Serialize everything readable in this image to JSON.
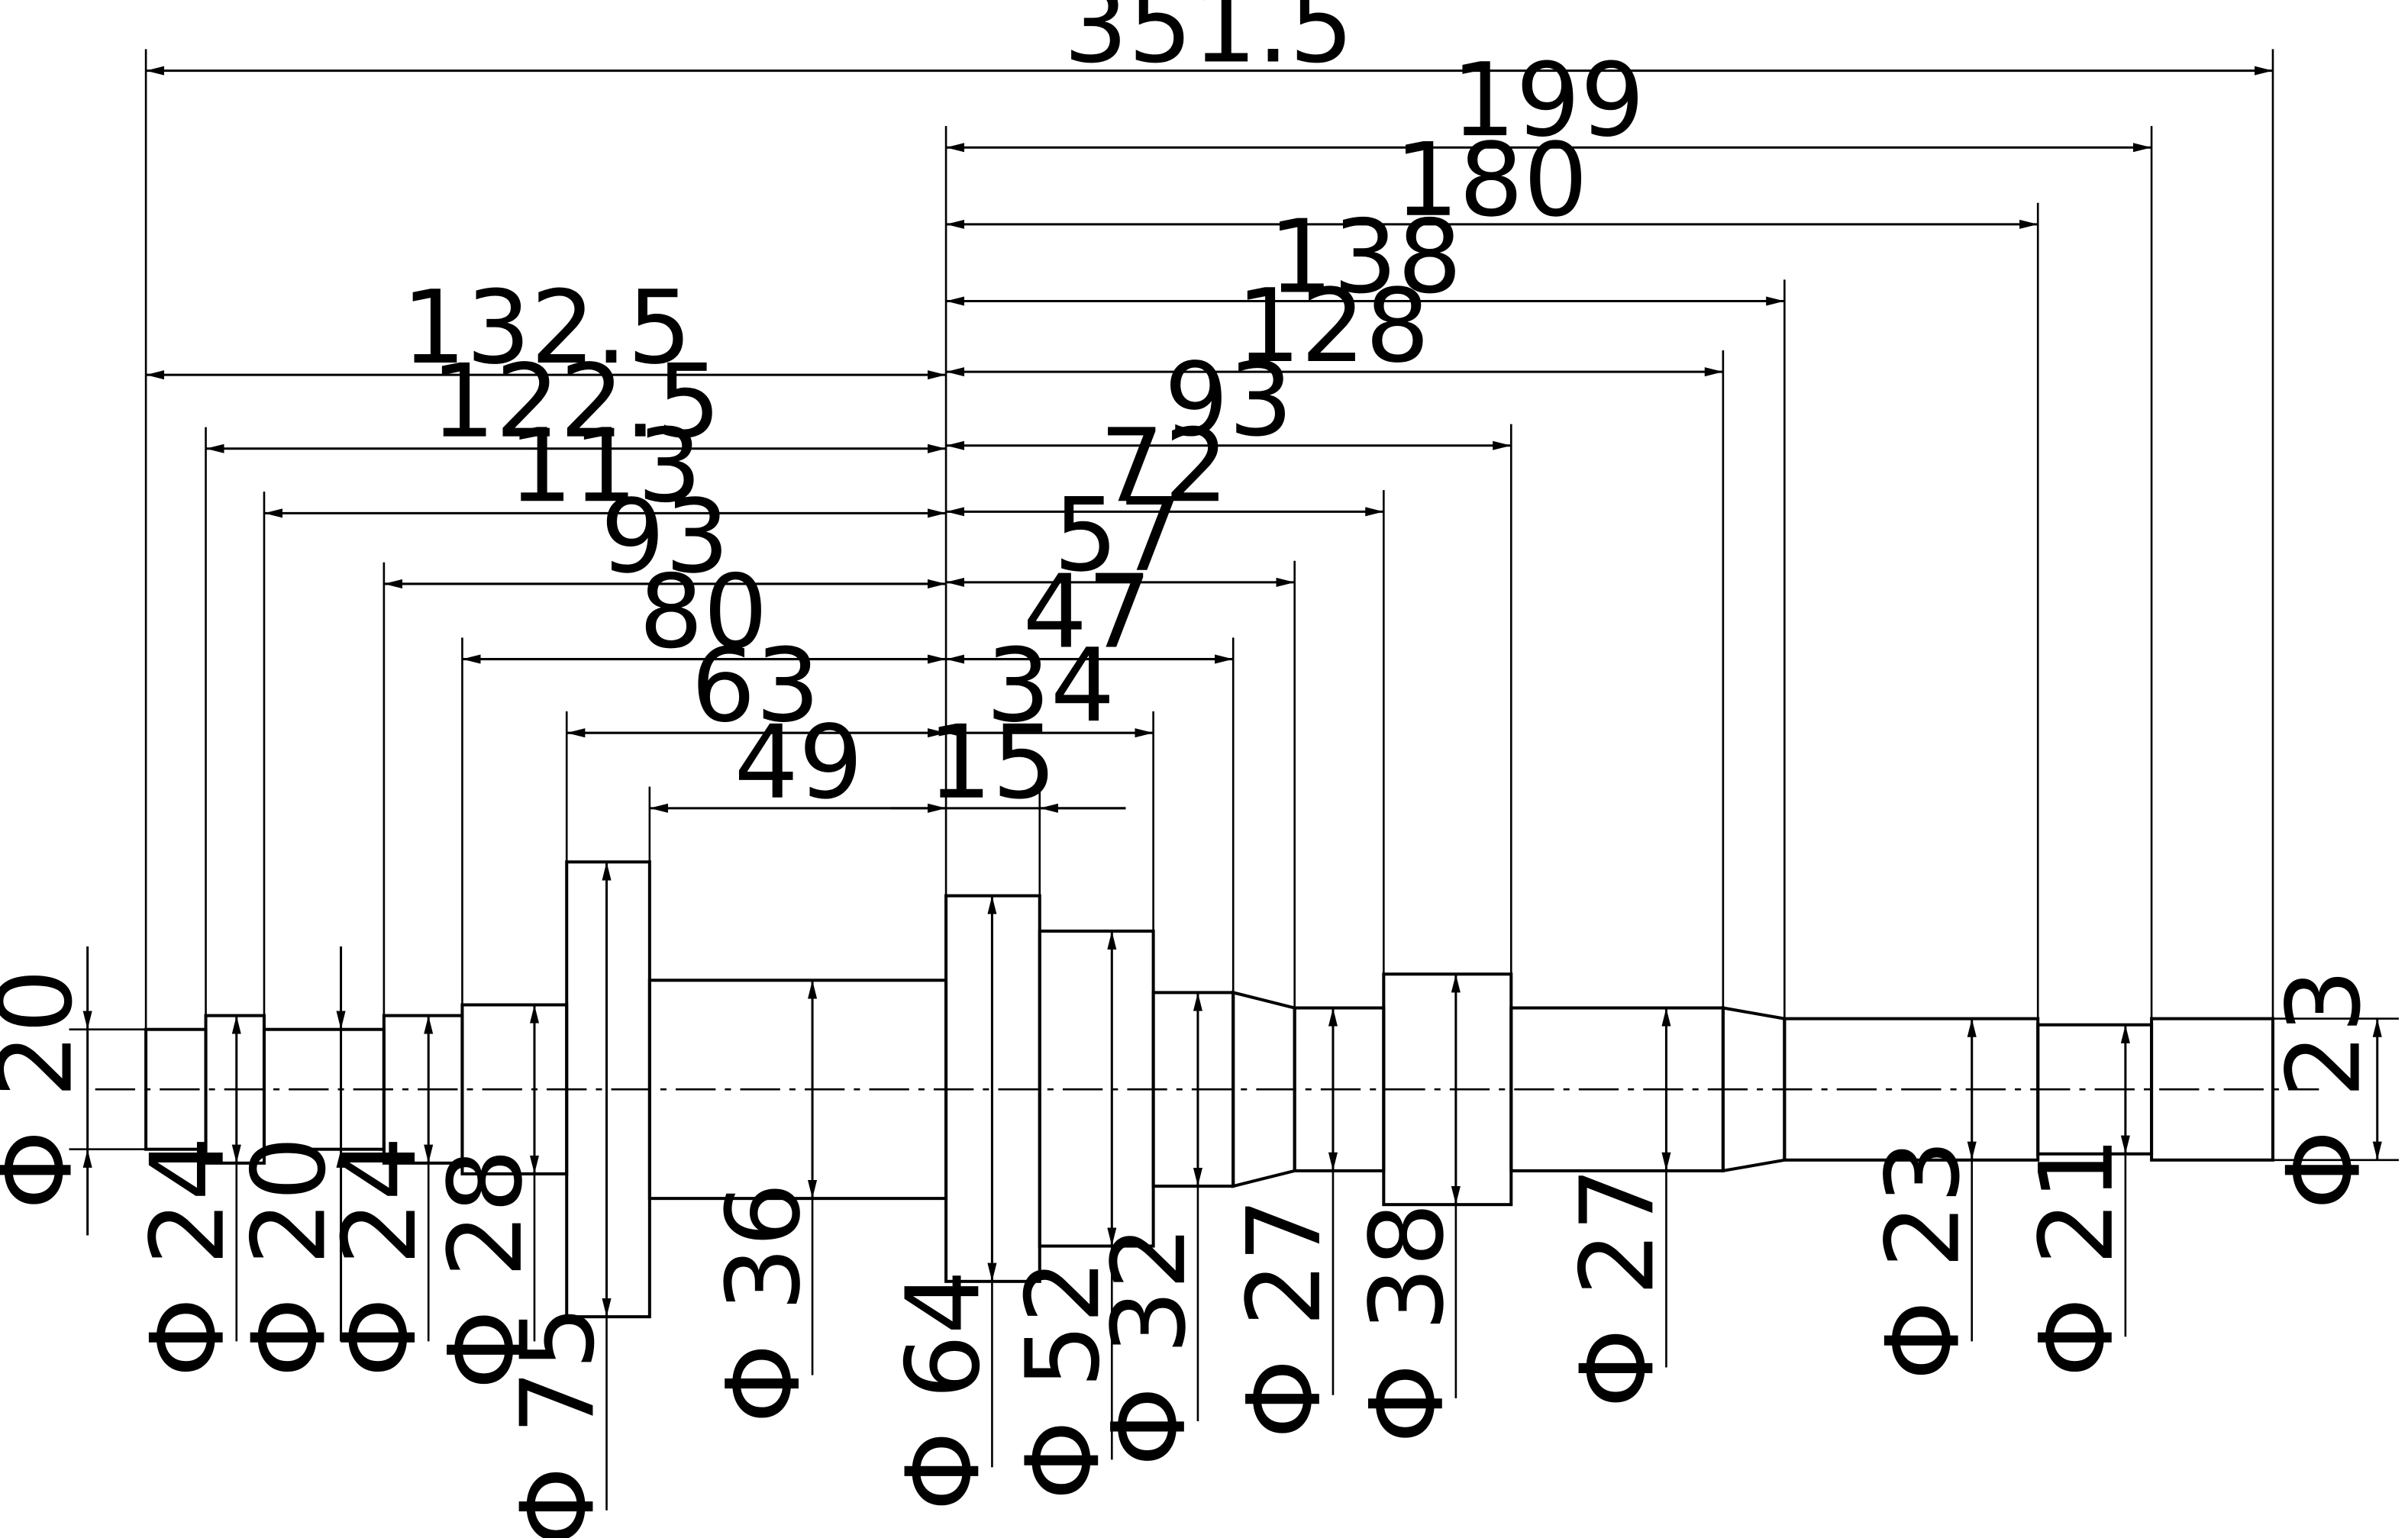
{
  "drawing": {
    "stroke_color": "#000000",
    "background": "#ffffff",
    "diameter_symbol": "Φ",
    "overall_length": "351.5",
    "datum_left_dims": [
      "132.5",
      "122.5",
      "113",
      "93",
      "80",
      "63",
      "49"
    ],
    "datum_right_dims": [
      "199",
      "180",
      "138",
      "128",
      "93",
      "72",
      "57",
      "47",
      "34",
      "15"
    ],
    "diameters": [
      "20",
      "24",
      "20",
      "24",
      "28",
      "75",
      "36",
      "64",
      "52",
      "32",
      "27",
      "38",
      "27",
      "23",
      "21",
      "23"
    ]
  }
}
